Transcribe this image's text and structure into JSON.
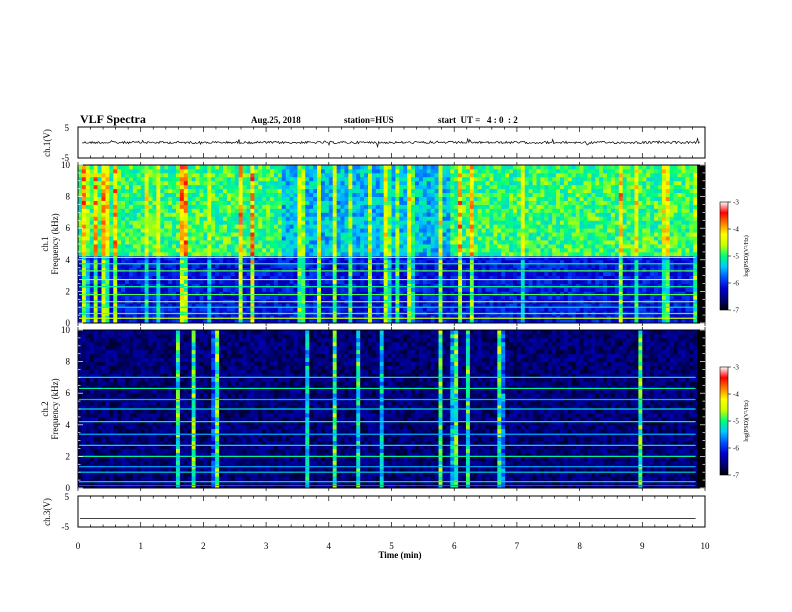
{
  "header": {
    "title": "VLF Spectra",
    "date": "Aug.25, 2018",
    "station": "station=HUS",
    "start_ut": "start  UT =   4 : 0  : 2"
  },
  "colors": {
    "colormap": [
      "#000000",
      "#00007a",
      "#0000d0",
      "#0050ff",
      "#00c8ff",
      "#00ff7a",
      "#c8ff00",
      "#ffff00",
      "#ff8000",
      "#ff0000",
      "#ffffff"
    ],
    "trace": "#000000"
  },
  "chart_data": [
    {
      "type": "line",
      "name": "ch.1 waveform",
      "ylabel": "ch.1(V)",
      "ylim": [
        -5,
        5
      ],
      "yticks": [
        "5",
        "-5"
      ],
      "xlim": [
        0,
        10
      ],
      "level": 0,
      "amplitude_note": "small broadband noise around 0 V"
    },
    {
      "type": "heatmap",
      "name": "ch.1 spectrogram",
      "ylabel_top": "ch.1",
      "ylabel": "Frequency (kHz)",
      "ylim": [
        0,
        10
      ],
      "yticks": [
        "0",
        "2",
        "4",
        "6",
        "8",
        "10"
      ],
      "xlim": [
        0,
        10
      ],
      "colorbar": {
        "label": "log(PSD)(V²/Hz)",
        "range": [
          -7,
          -3
        ],
        "ticks": [
          "-3",
          "-4",
          "-5",
          "-6",
          "-7"
        ]
      },
      "background_level": -6.1,
      "upper_band": {
        "freq_range": [
          4.3,
          10
        ],
        "level": -5.3
      },
      "tone_lines_khz": [
        0.3,
        0.6,
        1.0,
        1.35,
        1.8,
        2.3,
        2.75,
        3.3,
        3.75,
        4.15
      ],
      "time_of_stronger_activity_min": [
        [
          0,
          3.0
        ],
        [
          3.0,
          6.0
        ],
        [
          6.0,
          9.8
        ]
      ]
    },
    {
      "type": "heatmap",
      "name": "ch.2 spectrogram",
      "ylabel_top": "ch.2",
      "ylabel": "Frequency (kHz)",
      "ylim": [
        0,
        10
      ],
      "yticks": [
        "0",
        "2",
        "4",
        "6",
        "8",
        "10"
      ],
      "xlim": [
        0,
        10
      ],
      "colorbar": {
        "label": "log(PSD)(V²/Hz)",
        "range": [
          -7,
          -3
        ],
        "ticks": [
          "-3",
          "-4",
          "-5",
          "-6",
          "-7"
        ]
      },
      "background_level": -6.6,
      "tone_lines_khz": [
        0.4,
        1.0,
        1.35,
        2.0,
        2.7,
        3.4,
        4.2,
        5.0,
        5.6,
        6.3,
        7.0
      ]
    },
    {
      "type": "line",
      "name": "ch.3 waveform",
      "ylabel": "ch.3(V)",
      "ylim": [
        -5,
        5
      ],
      "yticks": [
        "5",
        "-5"
      ],
      "xlim": [
        0,
        10
      ],
      "level": -2.3,
      "xlabel": "Time (min)",
      "xticks": [
        "0",
        "1",
        "2",
        "3",
        "4",
        "5",
        "6",
        "7",
        "8",
        "9",
        "10"
      ]
    }
  ]
}
